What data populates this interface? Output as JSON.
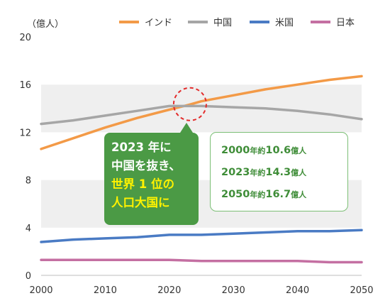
{
  "chart_data": {
    "type": "line",
    "ylabel": "（億人）",
    "x_ticks": [
      "2000",
      "2010",
      "2020",
      "2030",
      "2040",
      "2050"
    ],
    "y_ticks": [
      "0",
      "4",
      "8",
      "12",
      "16",
      "20"
    ],
    "xlim": [
      2000,
      2050
    ],
    "ylim": [
      0,
      20
    ],
    "grid": "horizontal alternating bands",
    "legend_position": "top",
    "series": [
      {
        "name": "インド",
        "color": "#f39a47",
        "points": [
          [
            2000,
            10.6
          ],
          [
            2005,
            11.5
          ],
          [
            2010,
            12.4
          ],
          [
            2015,
            13.2
          ],
          [
            2020,
            13.9
          ],
          [
            2023,
            14.3
          ],
          [
            2025,
            14.6
          ],
          [
            2030,
            15.1
          ],
          [
            2035,
            15.6
          ],
          [
            2040,
            16.0
          ],
          [
            2045,
            16.4
          ],
          [
            2050,
            16.7
          ]
        ]
      },
      {
        "name": "中国",
        "color": "#a6a6a6",
        "points": [
          [
            2000,
            12.7
          ],
          [
            2005,
            13.0
          ],
          [
            2010,
            13.4
          ],
          [
            2015,
            13.8
          ],
          [
            2020,
            14.2
          ],
          [
            2025,
            14.2
          ],
          [
            2030,
            14.1
          ],
          [
            2035,
            14.0
          ],
          [
            2040,
            13.8
          ],
          [
            2045,
            13.5
          ],
          [
            2050,
            13.1
          ]
        ]
      },
      {
        "name": "米国",
        "color": "#4a7bc4",
        "points": [
          [
            2000,
            2.8
          ],
          [
            2005,
            3.0
          ],
          [
            2010,
            3.1
          ],
          [
            2015,
            3.2
          ],
          [
            2020,
            3.4
          ],
          [
            2025,
            3.4
          ],
          [
            2030,
            3.5
          ],
          [
            2035,
            3.6
          ],
          [
            2040,
            3.7
          ],
          [
            2045,
            3.7
          ],
          [
            2050,
            3.8
          ]
        ]
      },
      {
        "name": "日本",
        "color": "#c46fa2",
        "points": [
          [
            2000,
            1.3
          ],
          [
            2005,
            1.3
          ],
          [
            2010,
            1.3
          ],
          [
            2015,
            1.3
          ],
          [
            2020,
            1.3
          ],
          [
            2025,
            1.2
          ],
          [
            2030,
            1.2
          ],
          [
            2035,
            1.2
          ],
          [
            2040,
            1.2
          ],
          [
            2045,
            1.1
          ],
          [
            2050,
            1.1
          ]
        ]
      }
    ],
    "highlight": {
      "x": 2023,
      "y": 14.3,
      "style": "red dashed circle"
    }
  },
  "callout": {
    "line1": "2023 年に",
    "line2": "中国を抜き、",
    "line3": "世界 1 位の",
    "line4": "人口大国に"
  },
  "infobox": {
    "rows": [
      {
        "year": "2000",
        "year_suffix": "年",
        "approx": "約",
        "value": "10.6",
        "unit": "億人"
      },
      {
        "year": "2023",
        "year_suffix": "年",
        "approx": "約",
        "value": "14.3",
        "unit": "億人"
      },
      {
        "year": "2050",
        "year_suffix": "年",
        "approx": "約",
        "value": "16.7",
        "unit": "億人"
      }
    ]
  }
}
